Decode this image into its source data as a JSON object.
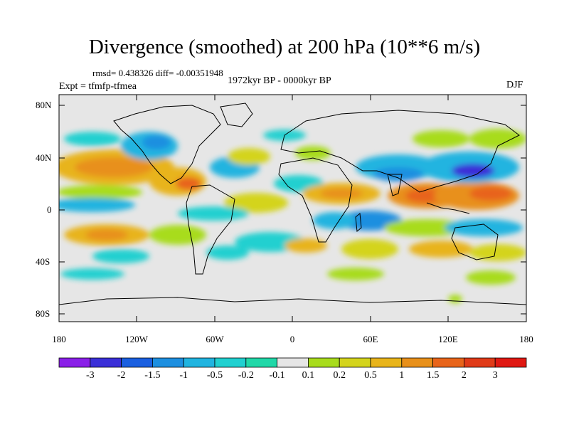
{
  "title": "Divergence (smoothed) at 200 hPa (10**6 m/s)",
  "stats": "rmsd= 0.438326 diff= -0.00351948",
  "experiment": "Expt = tfmfp-tfmea",
  "period": "1972kyr BP - 0000kyr BP",
  "season": "DJF",
  "map": {
    "lat_labels": [
      "80N",
      "40N",
      "0",
      "40S",
      "80S"
    ],
    "lon_labels": [
      "180",
      "120W",
      "60W",
      "0",
      "60E",
      "120E",
      "180"
    ]
  },
  "colorbar": {
    "labels": [
      "-3",
      "-2",
      "-1.5",
      "-1",
      "-0.5",
      "-0.2",
      "-0.1",
      "0.1",
      "0.2",
      "0.5",
      "1",
      "1.5",
      "2",
      "3"
    ],
    "colors": [
      "#8a1fe8",
      "#3a2fd8",
      "#1a5fe0",
      "#1d8fe0",
      "#20b4e0",
      "#20d0d0",
      "#20d8a8",
      "#e6e6e6",
      "#a8dc1c",
      "#d4d41c",
      "#e8b41a",
      "#e8901a",
      "#e8641a",
      "#e03a18",
      "#e01812"
    ]
  }
}
